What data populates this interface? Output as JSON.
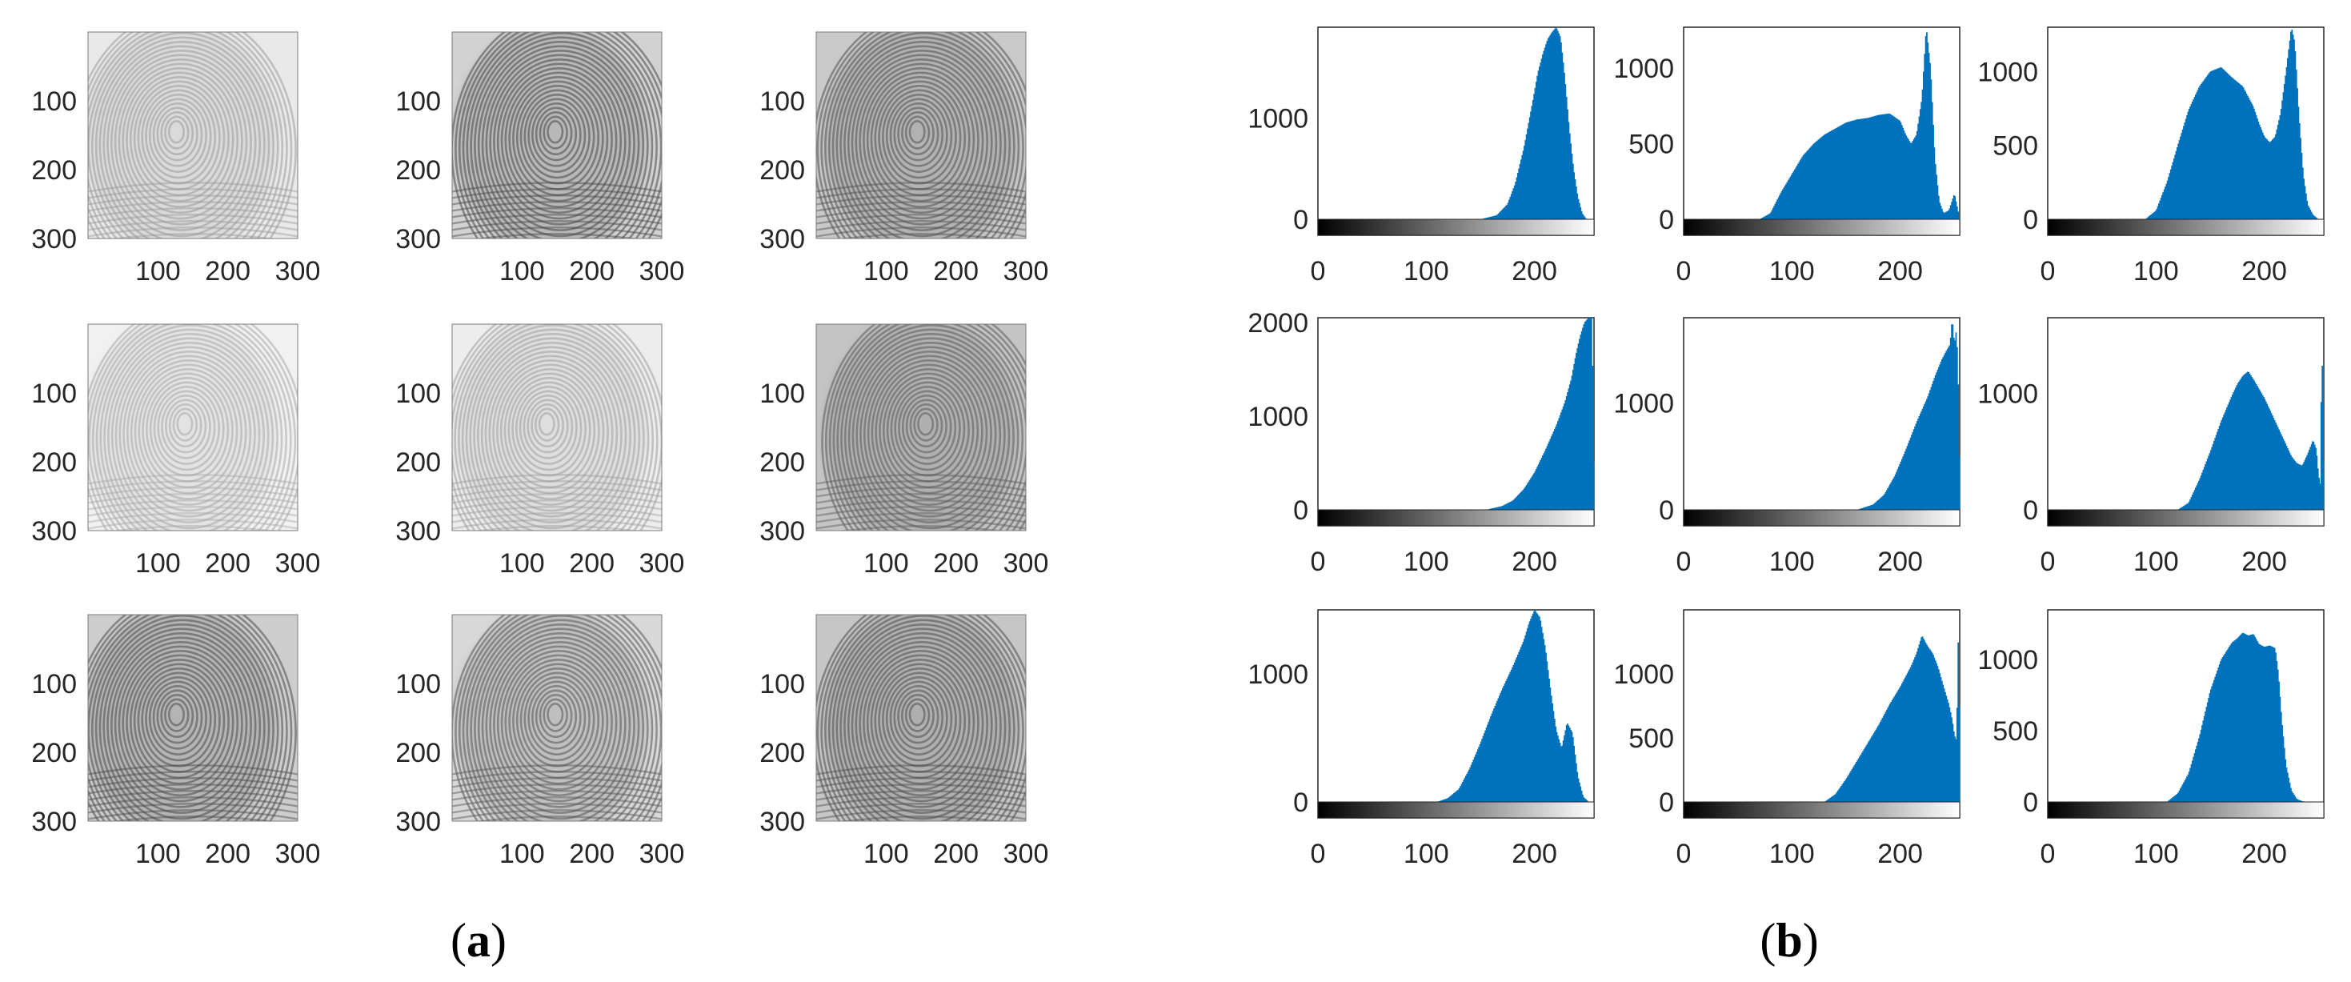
{
  "captions": {
    "a": "a",
    "b": "b"
  },
  "colors": {
    "bar": "#0072bd",
    "axis": "#262626",
    "background": "#ffffff"
  },
  "chart_data": [
    {
      "type": "image-grid",
      "title": "",
      "xlabel": "",
      "ylabel": "",
      "rows": 3,
      "cols": 3,
      "xticks": [
        100,
        200,
        300
      ],
      "yticks": [
        100,
        200,
        300
      ],
      "xlim": [
        0,
        300
      ],
      "ylim": [
        0,
        300
      ],
      "y_direction": "reversed",
      "colormap": "gray",
      "content": "fingerprint impressions",
      "tones": [
        {
          "background": "#e9e9e9",
          "ridge": "#9a9a9a"
        },
        {
          "background": "#d2d2d2",
          "ridge": "#474747"
        },
        {
          "background": "#c9c9c9",
          "ridge": "#505050"
        },
        {
          "background": "#f1f1f1",
          "ridge": "#a8a8a8"
        },
        {
          "background": "#ededed",
          "ridge": "#9e9e9e"
        },
        {
          "background": "#c4c4c4",
          "ridge": "#5a5a5a"
        },
        {
          "background": "#cdcdcd",
          "ridge": "#4a4a4a"
        },
        {
          "background": "#d8d8d8",
          "ridge": "#555555"
        },
        {
          "background": "#c6c6c6",
          "ridge": "#4c4c4c"
        }
      ]
    },
    {
      "type": "bar",
      "title": "",
      "xlabel": "",
      "ylabel": "",
      "subtype": "histogram-grid",
      "rows": 3,
      "cols": 3,
      "bin_width": 1,
      "xlim": [
        0,
        255
      ],
      "xticks": [
        0,
        100,
        200
      ],
      "colorbar": "grayscale",
      "panels": [
        {
          "ylim": [
            0,
            1900
          ],
          "yticks": [
            0,
            1000
          ],
          "x": [
            150,
            165,
            175,
            182,
            190,
            198,
            203,
            208,
            212,
            216,
            220,
            224,
            228,
            232,
            236,
            240,
            244,
            248
          ],
          "values": [
            0,
            40,
            150,
            350,
            700,
            1150,
            1450,
            1650,
            1780,
            1850,
            1900,
            1800,
            1400,
            900,
            500,
            220,
            60,
            0
          ]
        },
        {
          "ylim": [
            0,
            1270
          ],
          "yticks": [
            0,
            500,
            1000
          ],
          "x": [
            70,
            80,
            90,
            100,
            110,
            120,
            130,
            140,
            150,
            160,
            170,
            180,
            190,
            200,
            205,
            210,
            215,
            220,
            224,
            228,
            232,
            236,
            240,
            245,
            250,
            255
          ],
          "values": [
            0,
            40,
            180,
            300,
            420,
            500,
            560,
            600,
            640,
            660,
            670,
            690,
            700,
            650,
            560,
            500,
            560,
            800,
            1270,
            1000,
            400,
            120,
            40,
            60,
            170,
            0
          ]
        },
        {
          "ylim": [
            0,
            1300
          ],
          "yticks": [
            0,
            500,
            1000
          ],
          "x": [
            90,
            100,
            110,
            120,
            130,
            140,
            150,
            160,
            170,
            180,
            190,
            195,
            200,
            205,
            210,
            215,
            220,
            225,
            228,
            232,
            236,
            240,
            245,
            250
          ],
          "values": [
            0,
            60,
            250,
            500,
            740,
            900,
            1000,
            1030,
            960,
            900,
            760,
            650,
            560,
            520,
            560,
            720,
            1000,
            1300,
            1200,
            700,
            300,
            100,
            30,
            0
          ]
        },
        {
          "ylim": [
            0,
            2050
          ],
          "yticks": [
            0,
            1000,
            2000
          ],
          "x": [
            155,
            170,
            180,
            190,
            200,
            210,
            220,
            228,
            234,
            238,
            242,
            246,
            250,
            253,
            255
          ],
          "values": [
            0,
            40,
            100,
            220,
            400,
            640,
            900,
            1150,
            1400,
            1650,
            1850,
            2000,
            2050,
            2050,
            0
          ]
        },
        {
          "ylim": [
            0,
            1800
          ],
          "yticks": [
            0,
            1000
          ],
          "x": [
            160,
            175,
            185,
            195,
            205,
            215,
            225,
            232,
            238,
            242,
            246,
            248,
            250,
            252,
            254,
            255
          ],
          "values": [
            0,
            50,
            140,
            320,
            560,
            820,
            1050,
            1250,
            1400,
            1480,
            1550,
            1800,
            1550,
            1700,
            1000,
            0
          ]
        },
        {
          "ylim": [
            0,
            1650
          ],
          "yticks": [
            0,
            1000
          ],
          "x": [
            120,
            130,
            140,
            150,
            160,
            170,
            175,
            180,
            185,
            190,
            195,
            200,
            205,
            210,
            215,
            220,
            225,
            230,
            235,
            240,
            245,
            248,
            250,
            252,
            253,
            255
          ],
          "values": [
            0,
            60,
            260,
            500,
            760,
            980,
            1080,
            1150,
            1190,
            1120,
            1040,
            960,
            860,
            760,
            660,
            560,
            460,
            400,
            380,
            480,
            600,
            520,
            300,
            200,
            1650,
            0
          ]
        },
        {
          "ylim": [
            0,
            1500
          ],
          "yticks": [
            0,
            1000
          ],
          "x": [
            110,
            120,
            130,
            140,
            150,
            160,
            170,
            180,
            190,
            195,
            200,
            205,
            210,
            215,
            220,
            225,
            230,
            235,
            240,
            245,
            250
          ],
          "values": [
            0,
            30,
            100,
            260,
            460,
            680,
            880,
            1060,
            1260,
            1400,
            1500,
            1440,
            1200,
            860,
            560,
            420,
            620,
            540,
            200,
            40,
            0
          ]
        },
        {
          "ylim": [
            0,
            1500
          ],
          "yticks": [
            0,
            500,
            1000
          ],
          "x": [
            130,
            140,
            150,
            160,
            170,
            180,
            190,
            200,
            210,
            215,
            220,
            225,
            230,
            235,
            240,
            245,
            248,
            250,
            252,
            254,
            255
          ],
          "values": [
            0,
            60,
            180,
            320,
            460,
            600,
            760,
            900,
            1060,
            1160,
            1300,
            1220,
            1160,
            1050,
            900,
            760,
            640,
            520,
            480,
            1500,
            0
          ]
        },
        {
          "ylim": [
            0,
            1350
          ],
          "yticks": [
            0,
            500,
            1000
          ],
          "x": [
            110,
            120,
            130,
            140,
            150,
            160,
            170,
            175,
            180,
            185,
            190,
            195,
            200,
            205,
            210,
            213,
            216,
            220,
            225,
            230,
            235,
            240
          ],
          "values": [
            0,
            60,
            200,
            460,
            780,
            1000,
            1120,
            1150,
            1190,
            1170,
            1180,
            1110,
            1090,
            1100,
            1080,
            900,
            580,
            260,
            80,
            20,
            5,
            0
          ]
        }
      ]
    }
  ]
}
